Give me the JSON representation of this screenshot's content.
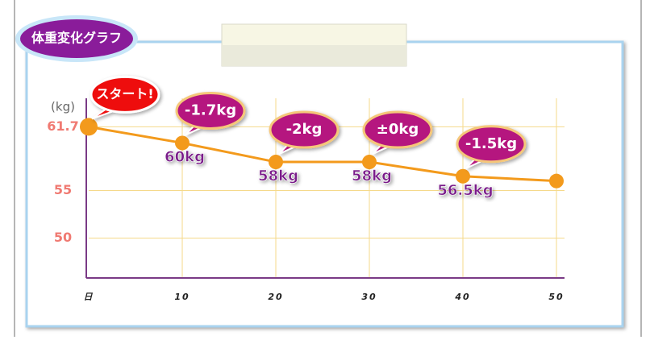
{
  "chart_data": {
    "type": "line",
    "tab_title": "体重変化グラフ",
    "y_unit_label": "(kg)",
    "x": [
      0,
      10,
      20,
      30,
      40,
      50
    ],
    "values": [
      61.7,
      60,
      58,
      58,
      56.5,
      56
    ],
    "value_labels": [
      null,
      "60kg",
      "58kg",
      "58kg",
      "56.5kg",
      null
    ],
    "annotations": [
      "スタート!",
      "-1.7kg",
      "-2kg",
      "±0kg",
      "-1.5kg"
    ],
    "color": "#f39a1c",
    "xlim": [
      0,
      50
    ],
    "xticks": [
      {
        "value": 0,
        "label": "日"
      },
      10,
      20,
      30,
      40,
      50
    ],
    "ylim": [
      45.8,
      64.7
    ],
    "yticks": [
      50,
      55,
      61.7
    ],
    "grid": true
  }
}
